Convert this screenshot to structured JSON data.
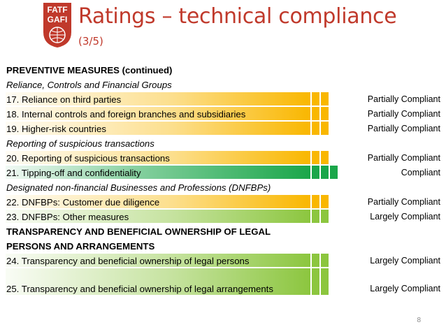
{
  "header": {
    "logo_text_top": "FATF",
    "logo_text_bottom": "GAFI",
    "title": "Ratings – technical compliance",
    "subtitle": "(3/5)"
  },
  "colors": {
    "title": "#c0392b",
    "partially_compliant": "#f9b700",
    "compliant": "#1aa64a",
    "largely_compliant": "#8cc63f"
  },
  "rows": [
    {
      "text": "PREVENTIVE MEASURES (continued)",
      "style": "bold"
    },
    {
      "text": "Reliance, Controls and Financial Groups",
      "style": "italic"
    },
    {
      "text": "17. Reliance on third parties",
      "rating": "Partially Compliant",
      "level": "partial"
    },
    {
      "text": "18. Internal controls and foreign branches and subsidiaries",
      "rating": "Partially Compliant",
      "level": "partial"
    },
    {
      "text": "19. Higher-risk countries",
      "rating": "Partially Compliant",
      "level": "partial"
    },
    {
      "text": "Reporting of suspicious transactions",
      "style": "italic"
    },
    {
      "text": "20. Reporting of suspicious transactions",
      "rating": "Partially Compliant",
      "level": "partial"
    },
    {
      "text": "21. Tipping-off and confidentiality",
      "rating": "Compliant",
      "level": "compliant"
    },
    {
      "text": "Designated non-financial Businesses and Professions (DNFBPs)",
      "style": "italic"
    },
    {
      "text": "22. DNFBPs: Customer due diligence",
      "rating": "Partially Compliant",
      "level": "partial"
    },
    {
      "text": "23. DNFBPs: Other measures",
      "rating": "Largely Compliant",
      "level": "largely"
    },
    {
      "text": "TRANSPARENCY AND BENEFICIAL OWNERSHIP OF LEGAL",
      "style": "bold"
    },
    {
      "text": "PERSONS AND ARRANGEMENTS",
      "style": "bold"
    },
    {
      "text": "24. Transparency and beneficial ownership of legal persons",
      "rating": "Largely Compliant",
      "level": "largely"
    },
    {
      "text": "25. Transparency and beneficial ownership of legal arrangements",
      "rating": "Largely Compliant",
      "level": "largely",
      "tall": true
    }
  ],
  "page_number": "8"
}
